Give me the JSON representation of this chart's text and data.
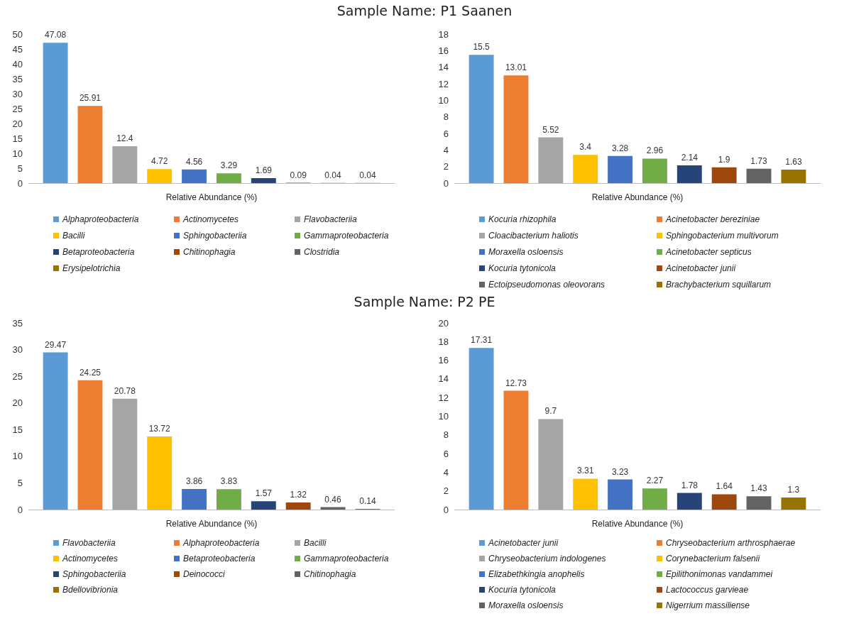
{
  "chart_data": [
    {
      "type": "bar",
      "title": "Sample Name: P1 Saanen",
      "xlabel": "Relative Abundance (%)",
      "categories": [
        null
      ],
      "ylim": [
        0,
        50
      ],
      "yticks": [
        0,
        5,
        10,
        15,
        20,
        25,
        30,
        35,
        40,
        45,
        50
      ],
      "data_labels": true,
      "legend": "bottom",
      "series": [
        {
          "name": "Alphaproteobacteria",
          "color": "#5b9bd5",
          "values": [
            47.08
          ]
        },
        {
          "name": "Actinomycetes",
          "color": "#ed7d31",
          "values": [
            25.91
          ]
        },
        {
          "name": "Flavobacteriia",
          "color": "#a5a5a5",
          "values": [
            12.4
          ]
        },
        {
          "name": "Bacilli",
          "color": "#ffc000",
          "values": [
            4.72
          ]
        },
        {
          "name": "Sphingobacteriia",
          "color": "#4472c4",
          "values": [
            4.56
          ]
        },
        {
          "name": "Gammaproteobacteria",
          "color": "#70ad47",
          "values": [
            3.29
          ]
        },
        {
          "name": "Betaproteobacteria",
          "color": "#264478",
          "values": [
            1.69
          ]
        },
        {
          "name": "Chitinophagia",
          "color": "#9e480e",
          "values": [
            0.09
          ]
        },
        {
          "name": "Clostridia",
          "color": "#636363",
          "values": [
            0.04
          ]
        },
        {
          "name": "Erysipelotrichia",
          "color": "#997300",
          "values": [
            0.04
          ]
        }
      ]
    },
    {
      "type": "bar",
      "xlabel": "Relative Abundance (%)",
      "categories": [
        null
      ],
      "ylim": [
        0,
        18
      ],
      "yticks": [
        0,
        2,
        4,
        6,
        8,
        10,
        12,
        14,
        16,
        18
      ],
      "data_labels": true,
      "legend": "bottom",
      "series": [
        {
          "name": "Kocuria rhizophila",
          "color": "#5b9bd5",
          "values": [
            15.5
          ]
        },
        {
          "name": "Acinetobacter bereziniae",
          "color": "#ed7d31",
          "values": [
            13.01
          ]
        },
        {
          "name": "Cloacibacterium haliotis",
          "color": "#a5a5a5",
          "values": [
            5.52
          ]
        },
        {
          "name": "Sphingobacterium multivorum",
          "color": "#ffc000",
          "values": [
            3.4
          ]
        },
        {
          "name": "Moraxella osloensis",
          "color": "#4472c4",
          "values": [
            3.28
          ]
        },
        {
          "name": "Acinetobacter septicus",
          "color": "#70ad47",
          "values": [
            2.96
          ]
        },
        {
          "name": "Kocuria tytonicola",
          "color": "#264478",
          "values": [
            2.14
          ]
        },
        {
          "name": "Acinetobacter junii",
          "color": "#9e480e",
          "values": [
            1.9
          ]
        },
        {
          "name": "Ectoipseudomonas oleovorans",
          "color": "#636363",
          "values": [
            1.73
          ]
        },
        {
          "name": "Brachybacterium squillarum",
          "color": "#997300",
          "values": [
            1.63
          ]
        }
      ]
    },
    {
      "type": "bar",
      "title": "Sample Name: P2 PE",
      "xlabel": "Relative Abundance (%)",
      "categories": [
        null
      ],
      "ylim": [
        0,
        35
      ],
      "yticks": [
        0,
        5,
        10,
        15,
        20,
        25,
        30,
        35
      ],
      "data_labels": true,
      "legend": "bottom",
      "series": [
        {
          "name": "Flavobacteriia",
          "color": "#5b9bd5",
          "values": [
            29.47
          ]
        },
        {
          "name": "Alphaproteobacteria",
          "color": "#ed7d31",
          "values": [
            24.25
          ]
        },
        {
          "name": "Bacilli",
          "color": "#a5a5a5",
          "values": [
            20.78
          ]
        },
        {
          "name": "Actinomycetes",
          "color": "#ffc000",
          "values": [
            13.72
          ]
        },
        {
          "name": "Betaproteobacteria",
          "color": "#4472c4",
          "values": [
            3.86
          ]
        },
        {
          "name": "Gammaproteobacteria",
          "color": "#70ad47",
          "values": [
            3.83
          ]
        },
        {
          "name": "Sphingobacteriia",
          "color": "#264478",
          "values": [
            1.57
          ]
        },
        {
          "name": "Deinococci",
          "color": "#9e480e",
          "values": [
            1.32
          ]
        },
        {
          "name": "Chitinophagia",
          "color": "#636363",
          "values": [
            0.46
          ]
        },
        {
          "name": "Bdellovibrionia",
          "color": "#997300",
          "values": [
            0.14
          ]
        }
      ]
    },
    {
      "type": "bar",
      "xlabel": "Relative Abundance (%)",
      "categories": [
        null
      ],
      "ylim": [
        0,
        20
      ],
      "yticks": [
        0,
        2,
        4,
        6,
        8,
        10,
        12,
        14,
        16,
        18,
        20
      ],
      "data_labels": true,
      "legend": "bottom",
      "series": [
        {
          "name": "Acinetobacter junii",
          "color": "#5b9bd5",
          "values": [
            17.31
          ]
        },
        {
          "name": "Chryseobacterium arthrosphaerae",
          "color": "#ed7d31",
          "values": [
            12.73
          ]
        },
        {
          "name": "Chryseobacterium indologenes",
          "color": "#a5a5a5",
          "values": [
            9.7
          ]
        },
        {
          "name": "Corynebacterium falsenii",
          "color": "#ffc000",
          "values": [
            3.31
          ]
        },
        {
          "name": "Elizabethkingia anophelis",
          "color": "#4472c4",
          "values": [
            3.23
          ]
        },
        {
          "name": "Epilithonimonas vandammei",
          "color": "#70ad47",
          "values": [
            2.27
          ]
        },
        {
          "name": "Kocuria tytonicola",
          "color": "#264478",
          "values": [
            1.78
          ]
        },
        {
          "name": "Lactococcus garvieae",
          "color": "#9e480e",
          "values": [
            1.64
          ]
        },
        {
          "name": "Moraxella osloensis",
          "color": "#636363",
          "values": [
            1.43
          ]
        },
        {
          "name": "Nigerrium massiliense",
          "color": "#997300",
          "values": [
            1.3
          ]
        }
      ]
    }
  ]
}
